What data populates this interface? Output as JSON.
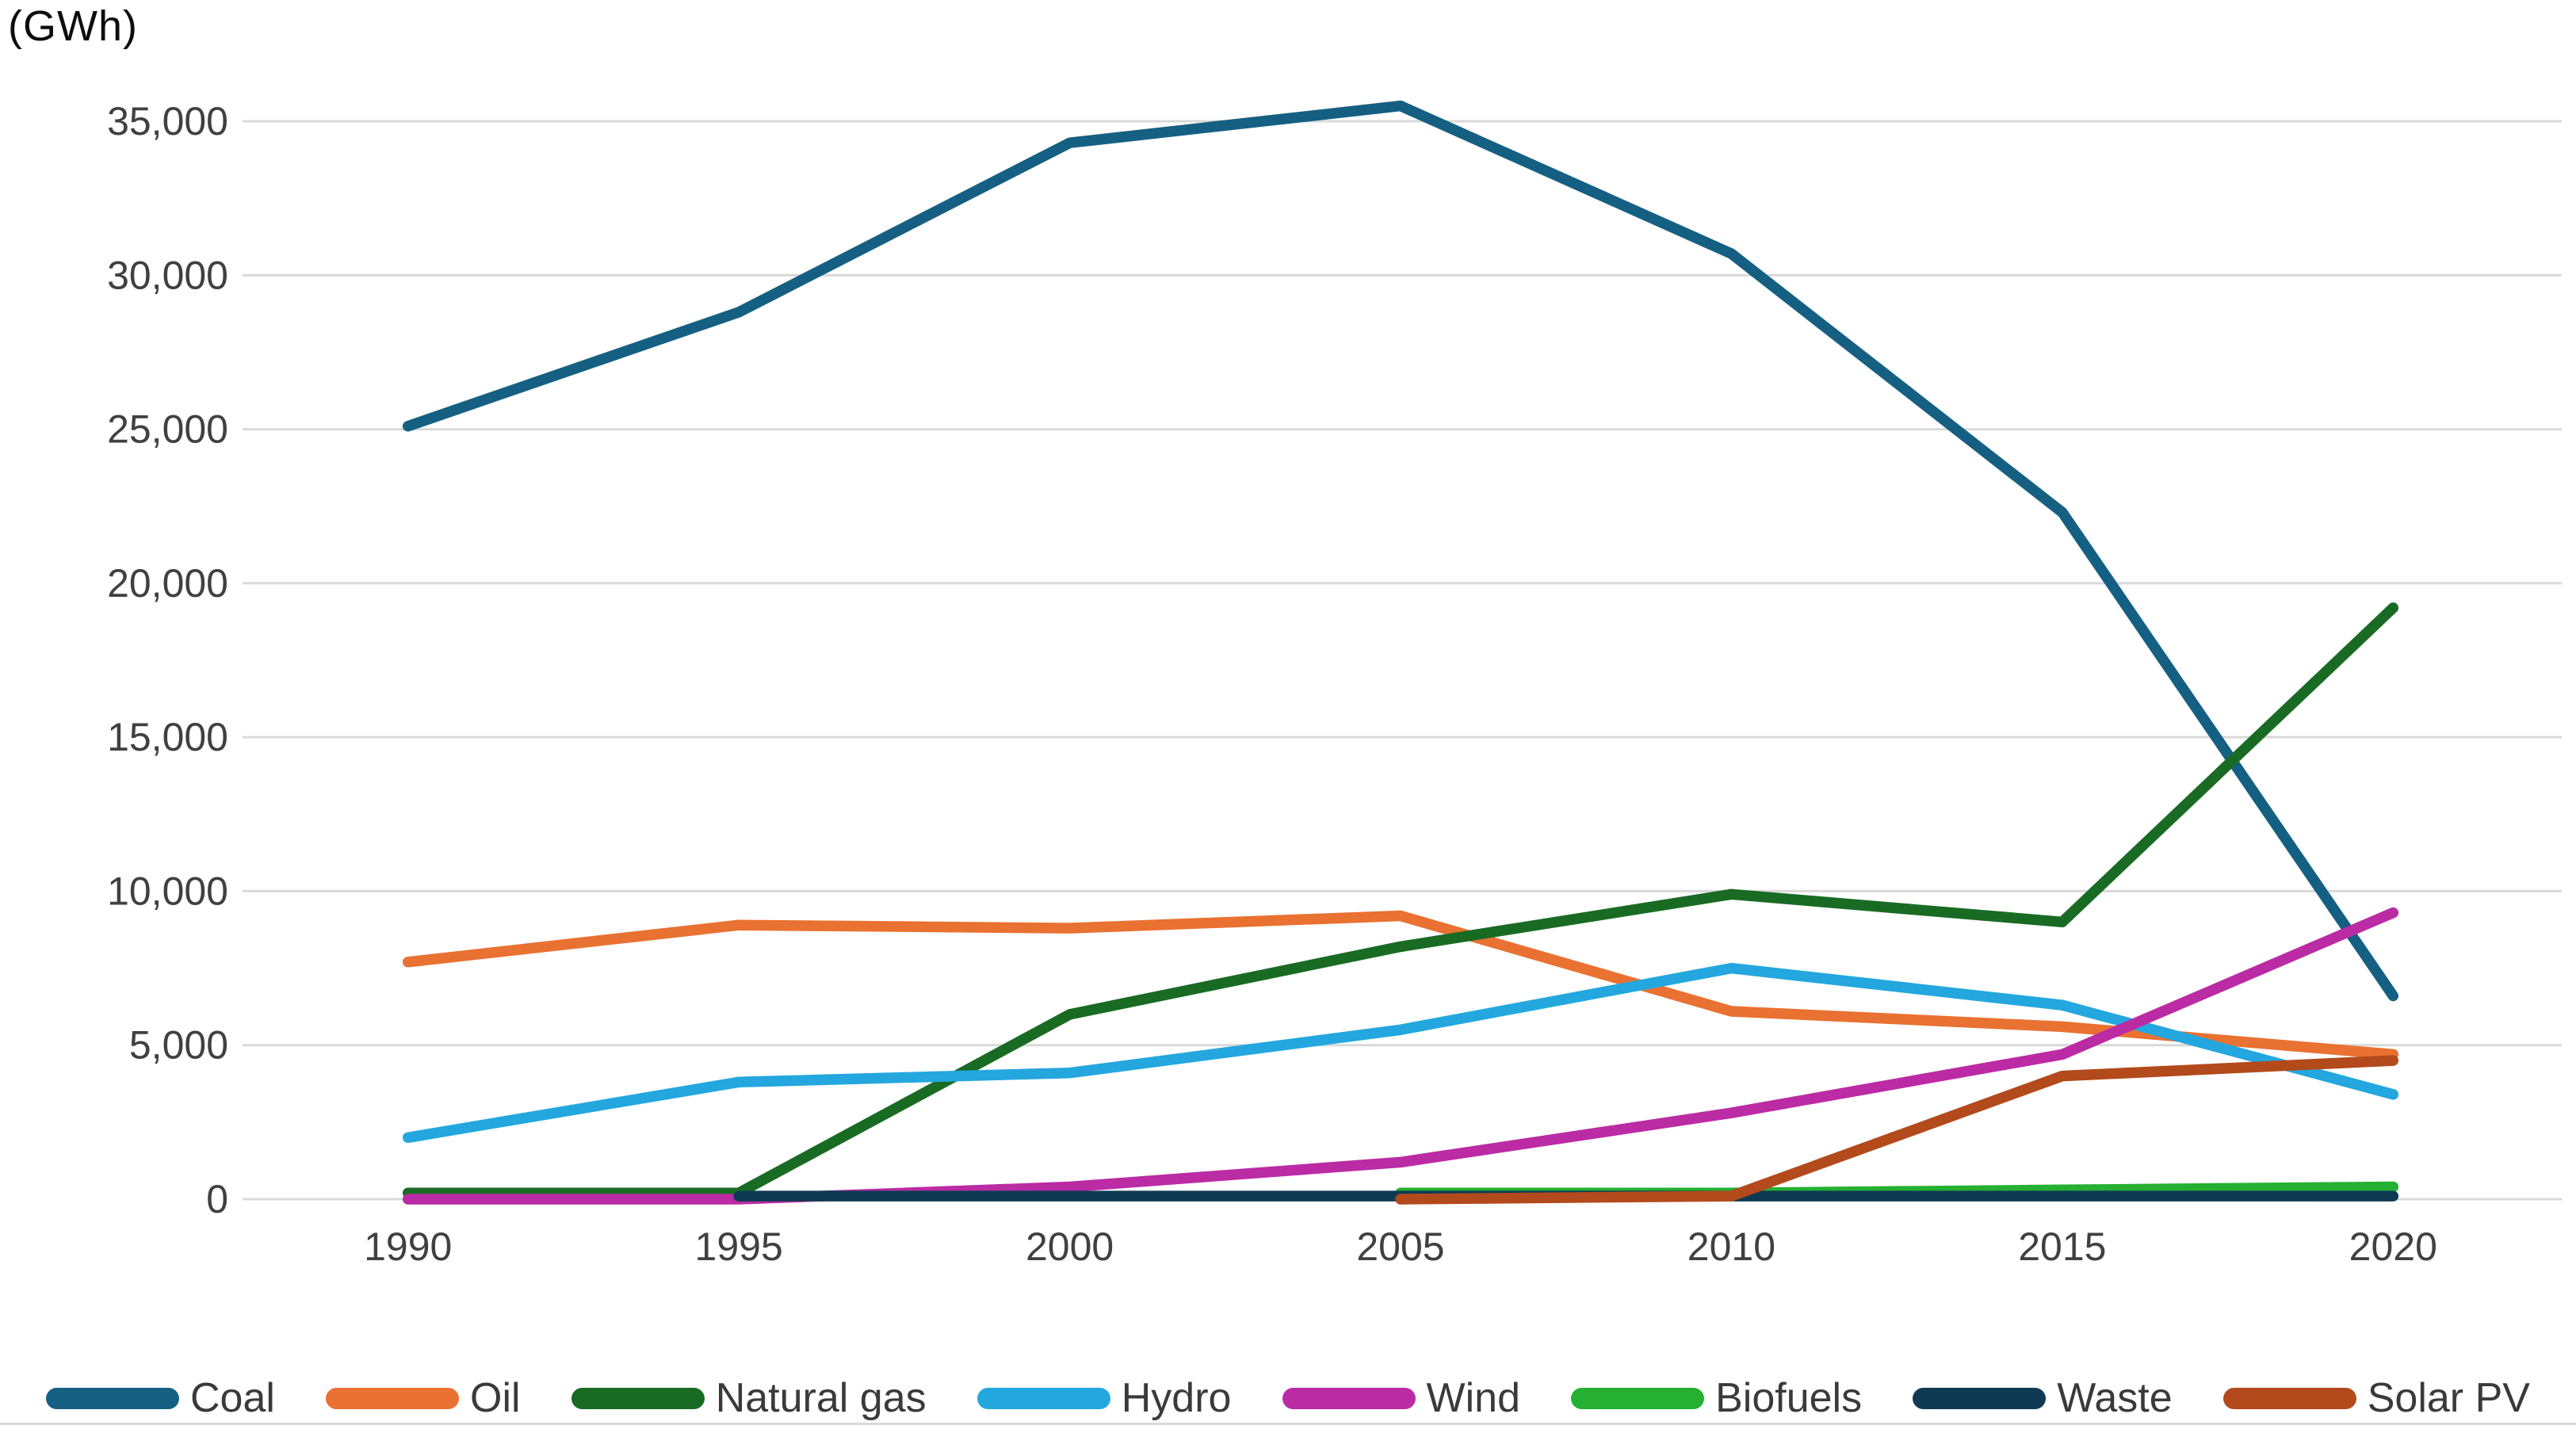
{
  "title": "(GWh)",
  "chart_data": {
    "type": "line",
    "title": "(GWh)",
    "xlabel": "",
    "ylabel": "GWh",
    "categories": [
      "1990",
      "1995",
      "2000",
      "2005",
      "2010",
      "2015",
      "2020"
    ],
    "ylim": [
      0,
      35000
    ],
    "ytick_step": 5000,
    "ytick_labels": [
      "0",
      "5,000",
      "10,000",
      "15,000",
      "20,000",
      "25,000",
      "30,000",
      "35,000"
    ],
    "grid": true,
    "gridline_color": "#d9d9d9",
    "axis_text_color": "#404040",
    "legend_position": "bottom",
    "series": [
      {
        "name": "Coal",
        "color": "#156082",
        "values": [
          25100,
          28800,
          34300,
          35500,
          30700,
          22300,
          6600
        ]
      },
      {
        "name": "Oil",
        "color": "#E97132",
        "values": [
          7700,
          8900,
          8800,
          9200,
          6100,
          5600,
          4700
        ]
      },
      {
        "name": "Natural gas",
        "color": "#196B24",
        "values": [
          200,
          200,
          6000,
          8200,
          9900,
          9000,
          19200
        ]
      },
      {
        "name": "Hydro",
        "color": "#23A7DE",
        "values": [
          2000,
          3800,
          4100,
          5500,
          7500,
          6300,
          3400
        ]
      },
      {
        "name": "Wind",
        "color": "#BB2BA4",
        "values": [
          0,
          0,
          400,
          1200,
          2800,
          4700,
          9300
        ]
      },
      {
        "name": "Biofuels",
        "color": "#25B032",
        "values": [
          null,
          null,
          null,
          200,
          200,
          300,
          400
        ]
      },
      {
        "name": "Waste",
        "color": "#0E3A54",
        "values": [
          null,
          100,
          100,
          100,
          100,
          100,
          100
        ]
      },
      {
        "name": "Solar PV",
        "color": "#B34A1C",
        "values": [
          null,
          null,
          null,
          0,
          100,
          4000,
          4500
        ]
      }
    ]
  }
}
